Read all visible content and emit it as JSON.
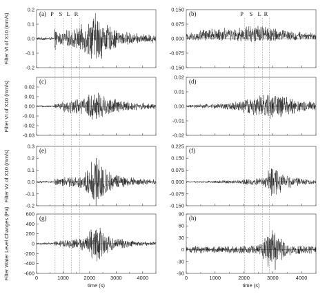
{
  "chart_data": [
    {
      "panel": "a",
      "label": "(a)",
      "type": "line",
      "ylabel": "Filter Vt of X10 (mm/s)",
      "ylim": [
        -0.2,
        0.2
      ],
      "yticks": [
        "0.2",
        "0.1",
        "0.0",
        "-0.1",
        "-0.2"
      ],
      "xlim": [
        0,
        4500
      ],
      "phases": [
        {
          "name": "P",
          "x": 700
        },
        {
          "name": "S",
          "x": 1020
        },
        {
          "name": "L",
          "x": 1320
        },
        {
          "name": "R",
          "x": 1620
        }
      ],
      "envelope": [
        [
          0,
          0.012
        ],
        [
          650,
          0.012
        ],
        [
          700,
          0.1
        ],
        [
          760,
          0.05
        ],
        [
          900,
          0.05
        ],
        [
          1100,
          0.06
        ],
        [
          1300,
          0.07
        ],
        [
          1500,
          0.08
        ],
        [
          1700,
          0.1
        ],
        [
          1900,
          0.12
        ],
        [
          2050,
          0.16
        ],
        [
          2200,
          0.2
        ],
        [
          2350,
          0.18
        ],
        [
          2500,
          0.14
        ],
        [
          2700,
          0.1
        ],
        [
          2900,
          0.08
        ],
        [
          3100,
          0.06
        ],
        [
          3400,
          0.05
        ],
        [
          3700,
          0.04
        ],
        [
          4000,
          0.035
        ],
        [
          4300,
          0.03
        ]
      ]
    },
    {
      "panel": "b",
      "label": "(b)",
      "type": "line",
      "ylim": [
        -0.15,
        0.15
      ],
      "yticks": [
        "0.150",
        "0.075",
        "0.000",
        "-0.075",
        "-0.150"
      ],
      "xlim": [
        0,
        4500
      ],
      "phases": [
        {
          "name": "P",
          "x": 2030
        },
        {
          "name": "S",
          "x": 2350
        },
        {
          "name": "L",
          "x": 2650
        },
        {
          "name": "R",
          "x": 2880
        }
      ],
      "envelope": [
        [
          0,
          0.03
        ],
        [
          300,
          0.04
        ],
        [
          700,
          0.055
        ],
        [
          1000,
          0.05
        ],
        [
          1300,
          0.06
        ],
        [
          1600,
          0.055
        ],
        [
          1900,
          0.065
        ],
        [
          2100,
          0.08
        ],
        [
          2400,
          0.075
        ],
        [
          2700,
          0.07
        ],
        [
          3000,
          0.065
        ],
        [
          3400,
          0.05
        ],
        [
          3800,
          0.04
        ],
        [
          4200,
          0.035
        ],
        [
          4500,
          0.03
        ]
      ],
      "positive_bias": true
    },
    {
      "panel": "c",
      "label": "(c)",
      "type": "line",
      "ylabel": "Filter Vt of X10 (mm/s)",
      "ylim": [
        -0.03,
        0.03
      ],
      "yticks": [
        "0.02",
        "0.01",
        "0.00",
        "-0.01",
        "-0.02",
        "-0.03"
      ],
      "xlim": [
        0,
        4500
      ],
      "envelope": [
        [
          0,
          0.001
        ],
        [
          650,
          0.001
        ],
        [
          700,
          0.004
        ],
        [
          800,
          0.003
        ],
        [
          1000,
          0.006
        ],
        [
          1300,
          0.008
        ],
        [
          1600,
          0.009
        ],
        [
          1900,
          0.011
        ],
        [
          2100,
          0.017
        ],
        [
          2250,
          0.02
        ],
        [
          2400,
          0.016
        ],
        [
          2600,
          0.012
        ],
        [
          2900,
          0.009
        ],
        [
          3200,
          0.007
        ],
        [
          3600,
          0.005
        ],
        [
          4000,
          0.004
        ],
        [
          4300,
          0.003
        ]
      ]
    },
    {
      "panel": "d",
      "label": "(d)",
      "type": "line",
      "ylim": [
        -0.02,
        0.02
      ],
      "yticks": [
        "0.02",
        "0.01",
        "0.00",
        "-0.01",
        "-0.02"
      ],
      "xlim": [
        0,
        4500
      ],
      "envelope": [
        [
          0,
          0.001
        ],
        [
          500,
          0.0015
        ],
        [
          1000,
          0.002
        ],
        [
          1500,
          0.003
        ],
        [
          1900,
          0.004
        ],
        [
          2000,
          0.008
        ],
        [
          2100,
          0.006
        ],
        [
          2400,
          0.007
        ],
        [
          2700,
          0.009
        ],
        [
          2900,
          0.01
        ],
        [
          3100,
          0.011
        ],
        [
          3300,
          0.008
        ],
        [
          3700,
          0.006
        ],
        [
          4100,
          0.004
        ],
        [
          4500,
          0.003
        ]
      ]
    },
    {
      "panel": "e",
      "label": "(e)",
      "type": "line",
      "ylabel": "Filter Vz of X10 (mm/s)",
      "ylim": [
        -0.2,
        0.3
      ],
      "yticks": [
        "0.3",
        "0.2",
        "0.1",
        "0.0",
        "-0.1",
        "-0.2"
      ],
      "xlim": [
        0,
        4500
      ],
      "envelope": [
        [
          0,
          0.01
        ],
        [
          650,
          0.01
        ],
        [
          700,
          0.05
        ],
        [
          800,
          0.03
        ],
        [
          1000,
          0.04
        ],
        [
          1300,
          0.05
        ],
        [
          1600,
          0.06
        ],
        [
          1900,
          0.1
        ],
        [
          2100,
          0.2
        ],
        [
          2250,
          0.27
        ],
        [
          2400,
          0.2
        ],
        [
          2600,
          0.13
        ],
        [
          2900,
          0.08
        ],
        [
          3200,
          0.06
        ],
        [
          3600,
          0.04
        ],
        [
          4000,
          0.03
        ],
        [
          4300,
          0.025
        ]
      ]
    },
    {
      "panel": "f",
      "label": "(f)",
      "type": "line",
      "ylim": [
        -0.15,
        0.225
      ],
      "yticks": [
        "0.225",
        "0.150",
        "0.075",
        "0.000",
        "-0.075",
        "-0.150"
      ],
      "xlim": [
        0,
        4500
      ],
      "envelope": [
        [
          0,
          0.005
        ],
        [
          500,
          0.007
        ],
        [
          1000,
          0.01
        ],
        [
          1500,
          0.012
        ],
        [
          1900,
          0.015
        ],
        [
          2000,
          0.025
        ],
        [
          2300,
          0.02
        ],
        [
          2600,
          0.03
        ],
        [
          2800,
          0.06
        ],
        [
          3000,
          0.12
        ],
        [
          3150,
          0.09
        ],
        [
          3400,
          0.05
        ],
        [
          3800,
          0.03
        ],
        [
          4200,
          0.02
        ],
        [
          4500,
          0.015
        ]
      ]
    },
    {
      "panel": "g",
      "label": "(g)",
      "type": "line",
      "ylabel": "Filter Water Level Changes (Pa)",
      "ylim": [
        -600,
        600
      ],
      "yticks": [
        "600",
        "400",
        "200",
        "0",
        "-200",
        "-400",
        "-600"
      ],
      "xlim": [
        0,
        4500
      ],
      "xticks": [
        "0",
        "1000",
        "2000",
        "3000",
        "4000"
      ],
      "xlabel": "time (s)",
      "envelope": [
        [
          0,
          25
        ],
        [
          650,
          25
        ],
        [
          700,
          80
        ],
        [
          800,
          60
        ],
        [
          1000,
          80
        ],
        [
          1300,
          100
        ],
        [
          1600,
          130
        ],
        [
          1900,
          200
        ],
        [
          2100,
          350
        ],
        [
          2250,
          450
        ],
        [
          2400,
          330
        ],
        [
          2600,
          220
        ],
        [
          2900,
          140
        ],
        [
          3200,
          100
        ],
        [
          3600,
          70
        ],
        [
          4000,
          50
        ],
        [
          4300,
          40
        ]
      ]
    },
    {
      "panel": "h",
      "label": "(h)",
      "type": "line",
      "ylim": [
        -60,
        90
      ],
      "yticks": [
        "90",
        "60",
        "30",
        "0",
        "-30",
        "-60"
      ],
      "xlim": [
        0,
        4500
      ],
      "xticks": [
        "0",
        "1000",
        "2000",
        "3000",
        "4000"
      ],
      "xlabel": "time (s)",
      "envelope": [
        [
          0,
          10
        ],
        [
          500,
          10
        ],
        [
          1000,
          10
        ],
        [
          1500,
          10
        ],
        [
          2000,
          11
        ],
        [
          2400,
          12
        ],
        [
          2600,
          20
        ],
        [
          2800,
          40
        ],
        [
          3000,
          62
        ],
        [
          3150,
          50
        ],
        [
          3400,
          25
        ],
        [
          3700,
          15
        ],
        [
          4000,
          11
        ],
        [
          4500,
          10
        ]
      ]
    }
  ]
}
